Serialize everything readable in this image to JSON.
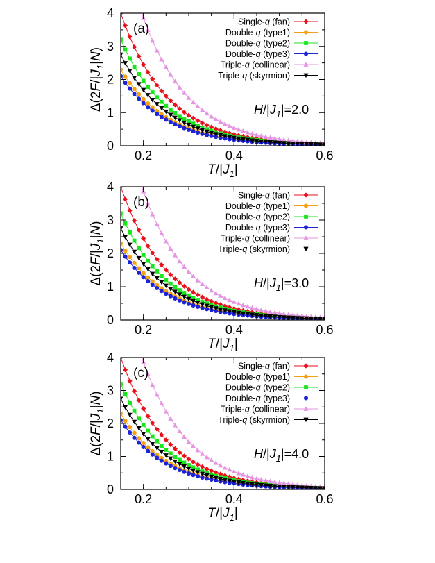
{
  "chart_data": [
    {
      "type": "line",
      "panel_label": "(a)",
      "field_label": {
        "pre": "H",
        "mid": "/|J",
        "sub": "1",
        "post": "|=2.0"
      },
      "xlabel": {
        "pre": "T",
        "mid": "/|J",
        "sub": "1",
        "post": "|"
      },
      "ylabel": {
        "pre": "Δ(2",
        "mid": "F",
        "mid2": "/|J",
        "sub": "1",
        "post": "|N)"
      },
      "xlim": [
        0.15,
        0.6
      ],
      "ylim": [
        0,
        4
      ],
      "xticks": [
        "0.2",
        "0.4",
        "0.6"
      ],
      "yticks": [
        "0",
        "1",
        "2",
        "3",
        "4"
      ],
      "legend_position": "top-right",
      "grid": false,
      "series": [
        {
          "legend_pre": "Single-",
          "legend_q": "q",
          "legend_post": " (fan)",
          "color": "#e8111b",
          "marker": "diamond",
          "y0": 4.0,
          "rate": 9.8
        },
        {
          "legend_pre": "Double-",
          "legend_q": "q",
          "legend_post": " (type1)",
          "color": "#f5a011",
          "marker": "circle",
          "y0": 2.3,
          "rate": 9.8
        },
        {
          "legend_pre": "Double-",
          "legend_q": "q",
          "legend_post": " (type2)",
          "color": "#19e619",
          "marker": "square",
          "y0": 3.2,
          "rate": 9.8
        },
        {
          "legend_pre": "Double-",
          "legend_q": "q",
          "legend_post": " (type3)",
          "color": "#1d23d6",
          "marker": "circle",
          "y0": 2.1,
          "rate": 9.8
        },
        {
          "legend_pre": "Triple-",
          "legend_q": "q",
          "legend_post": " (collinear)",
          "color": "#e596e2",
          "marker": "triangle-up",
          "y0": 6.3,
          "rate": 9.8
        },
        {
          "legend_pre": "Triple-",
          "legend_q": "q",
          "legend_post": " (skyrmion)",
          "color": "#000000",
          "marker": "triangle-down",
          "y0": 2.75,
          "rate": 9.8
        }
      ]
    },
    {
      "type": "line",
      "panel_label": "(b)",
      "field_label": {
        "pre": "H",
        "mid": "/|J",
        "sub": "1",
        "post": "|=3.0"
      },
      "xlabel": {
        "pre": "T",
        "mid": "/|J",
        "sub": "1",
        "post": "|"
      },
      "ylabel": {
        "pre": "Δ(2",
        "mid": "F",
        "mid2": "/|J",
        "sub": "1",
        "post": "|N)"
      },
      "xlim": [
        0.15,
        0.6
      ],
      "ylim": [
        0,
        4
      ],
      "xticks": [
        "0.2",
        "0.4",
        "0.6"
      ],
      "yticks": [
        "0",
        "1",
        "2",
        "3",
        "4"
      ],
      "legend_position": "top-right",
      "grid": false,
      "series": [
        {
          "legend_pre": "Single-",
          "legend_q": "q",
          "legend_post": " (fan)",
          "color": "#e8111b",
          "marker": "diamond",
          "y0": 4.0,
          "rate": 9.8
        },
        {
          "legend_pre": "Double-",
          "legend_q": "q",
          "legend_post": " (type1)",
          "color": "#f5a011",
          "marker": "circle",
          "y0": 2.3,
          "rate": 9.8
        },
        {
          "legend_pre": "Double-",
          "legend_q": "q",
          "legend_post": " (type2)",
          "color": "#19e619",
          "marker": "square",
          "y0": 3.2,
          "rate": 9.8
        },
        {
          "legend_pre": "Double-",
          "legend_q": "q",
          "legend_post": " (type3)",
          "color": "#1d23d6",
          "marker": "circle",
          "y0": 2.1,
          "rate": 9.8
        },
        {
          "legend_pre": "Triple-",
          "legend_q": "q",
          "legend_post": " (collinear)",
          "color": "#e596e2",
          "marker": "triangle-up",
          "y0": 6.3,
          "rate": 9.8
        },
        {
          "legend_pre": "Triple-",
          "legend_q": "q",
          "legend_post": " (skyrmion)",
          "color": "#000000",
          "marker": "triangle-down",
          "y0": 2.75,
          "rate": 9.8
        }
      ]
    },
    {
      "type": "line",
      "panel_label": "(c)",
      "field_label": {
        "pre": "H",
        "mid": "/|J",
        "sub": "1",
        "post": "|=4.0"
      },
      "xlabel": {
        "pre": "T",
        "mid": "/|J",
        "sub": "1",
        "post": "|"
      },
      "ylabel": {
        "pre": "Δ(2",
        "mid": "F",
        "mid2": "/|J",
        "sub": "1",
        "post": "|N)"
      },
      "xlim": [
        0.15,
        0.6
      ],
      "ylim": [
        0,
        4
      ],
      "xticks": [
        "0.2",
        "0.4",
        "0.6"
      ],
      "yticks": [
        "0",
        "1",
        "2",
        "3",
        "4"
      ],
      "legend_position": "top-right",
      "grid": false,
      "series": [
        {
          "legend_pre": "Single-",
          "legend_q": "q",
          "legend_post": " (fan)",
          "color": "#e8111b",
          "marker": "diamond",
          "y0": 4.0,
          "rate": 9.8
        },
        {
          "legend_pre": "Double-",
          "legend_q": "q",
          "legend_post": " (type1)",
          "color": "#f5a011",
          "marker": "circle",
          "y0": 2.3,
          "rate": 9.8
        },
        {
          "legend_pre": "Double-",
          "legend_q": "q",
          "legend_post": " (type2)",
          "color": "#19e619",
          "marker": "square",
          "y0": 3.2,
          "rate": 9.8
        },
        {
          "legend_pre": "Double-",
          "legend_q": "q",
          "legend_post": " (type3)",
          "color": "#1d23d6",
          "marker": "circle",
          "y0": 2.1,
          "rate": 9.8
        },
        {
          "legend_pre": "Triple-",
          "legend_q": "q",
          "legend_post": " (collinear)",
          "color": "#e596e2",
          "marker": "triangle-up",
          "y0": 6.3,
          "rate": 9.8
        },
        {
          "legend_pre": "Triple-",
          "legend_q": "q",
          "legend_post": " (skyrmion)",
          "color": "#000000",
          "marker": "triangle-down",
          "y0": 2.75,
          "rate": 9.8
        }
      ]
    }
  ]
}
